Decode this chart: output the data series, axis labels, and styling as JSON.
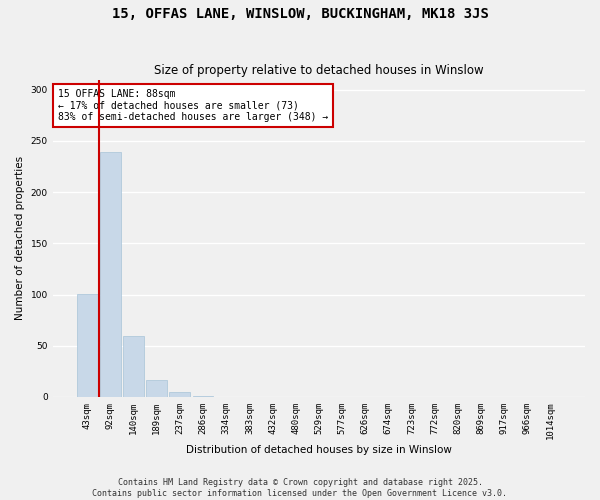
{
  "title": "15, OFFAS LANE, WINSLOW, BUCKINGHAM, MK18 3JS",
  "subtitle": "Size of property relative to detached houses in Winslow",
  "xlabel": "Distribution of detached houses by size in Winslow",
  "ylabel": "Number of detached properties",
  "bar_color": "#c8d8e8",
  "bar_edgecolor": "#a8c4d8",
  "vline_color": "#cc0000",
  "vline_x": 0.5,
  "annotation_text": "15 OFFAS LANE: 88sqm\n← 17% of detached houses are smaller (73)\n83% of semi-detached houses are larger (348) →",
  "annotation_box_color": "#ffffff",
  "annotation_box_edgecolor": "#cc0000",
  "categories": [
    "43sqm",
    "92sqm",
    "140sqm",
    "189sqm",
    "237sqm",
    "286sqm",
    "334sqm",
    "383sqm",
    "432sqm",
    "480sqm",
    "529sqm",
    "577sqm",
    "626sqm",
    "674sqm",
    "723sqm",
    "772sqm",
    "820sqm",
    "869sqm",
    "917sqm",
    "966sqm",
    "1014sqm"
  ],
  "values": [
    101,
    239,
    60,
    17,
    5,
    1,
    0,
    0,
    0,
    0,
    0,
    0,
    0,
    0,
    0,
    0,
    0,
    0,
    0,
    0,
    0
  ],
  "ylim": [
    0,
    310
  ],
  "yticks": [
    0,
    50,
    100,
    150,
    200,
    250,
    300
  ],
  "footnote": "Contains HM Land Registry data © Crown copyright and database right 2025.\nContains public sector information licensed under the Open Government Licence v3.0.",
  "background_color": "#f0f0f0",
  "grid_color": "#ffffff",
  "title_fontsize": 10,
  "subtitle_fontsize": 8.5,
  "axis_label_fontsize": 7.5,
  "tick_fontsize": 6.5,
  "footnote_fontsize": 6,
  "annotation_fontsize": 7
}
